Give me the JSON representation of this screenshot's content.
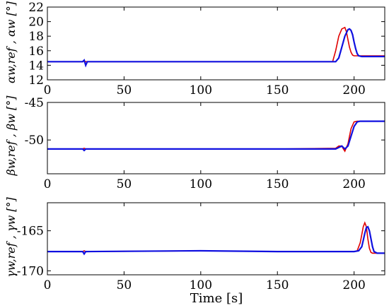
{
  "chart_data": [
    {
      "type": "line",
      "ylabel": "αw,ref , αw  [°]",
      "xlim": [
        0,
        220
      ],
      "ylim": [
        12,
        22
      ],
      "xticks": [
        0,
        50,
        100,
        150,
        200
      ],
      "yticks": [
        12,
        14,
        16,
        18,
        20,
        22
      ],
      "ytick_labels": [
        "12",
        "14",
        "16",
        "18",
        "20",
        "22"
      ],
      "series": [
        {
          "color": "#e00000",
          "role": "reference",
          "x": [
            0,
            23,
            24,
            25,
            26,
            100,
            150,
            186,
            188,
            190,
            192,
            194,
            195,
            196,
            197,
            198,
            199,
            200,
            201,
            202,
            205,
            210,
            220
          ],
          "y": [
            14.5,
            14.5,
            14.6,
            14.5,
            14.5,
            14.5,
            14.5,
            14.5,
            16.0,
            18.0,
            19.0,
            19.2,
            18.6,
            17.5,
            16.5,
            15.8,
            15.4,
            15.3,
            15.3,
            15.3,
            15.3,
            15.3,
            15.3
          ]
        },
        {
          "color": "#1010e0",
          "role": "measured",
          "x": [
            0,
            23,
            24,
            25,
            26,
            100,
            150,
            188,
            190,
            192,
            194,
            196,
            197,
            198,
            199,
            200,
            201,
            202,
            203,
            205,
            210,
            220
          ],
          "y": [
            14.5,
            14.5,
            14.7,
            14.0,
            14.5,
            14.5,
            14.5,
            14.5,
            15.0,
            16.5,
            18.0,
            18.9,
            19.0,
            18.8,
            18.2,
            17.2,
            16.3,
            15.6,
            15.3,
            15.2,
            15.2,
            15.2
          ]
        }
      ]
    },
    {
      "type": "line",
      "ylabel": "βw,ref , βw  [°]",
      "xlim": [
        0,
        220
      ],
      "ylim": [
        -54.5,
        -45
      ],
      "xticks": [
        0,
        50,
        100,
        150,
        200
      ],
      "yticks": [
        -50,
        -45
      ],
      "ytick_labels": [
        "-50",
        "-45"
      ],
      "series": [
        {
          "color": "#e00000",
          "role": "reference",
          "x": [
            0,
            23,
            24,
            25,
            100,
            150,
            188,
            190,
            192,
            193,
            194,
            196,
            198,
            200,
            202,
            205,
            220
          ],
          "y": [
            -51.2,
            -51.2,
            -51.1,
            -51.2,
            -51.2,
            -51.2,
            -51.1,
            -50.8,
            -50.8,
            -51.2,
            -51.5,
            -50.5,
            -48.5,
            -47.6,
            -47.5,
            -47.5,
            -47.5
          ]
        },
        {
          "color": "#1010e0",
          "role": "measured",
          "x": [
            0,
            23,
            24,
            25,
            100,
            150,
            188,
            190,
            192,
            194,
            196,
            198,
            200,
            202,
            204,
            206,
            220
          ],
          "y": [
            -51.2,
            -51.2,
            -51.4,
            -51.2,
            -51.2,
            -51.2,
            -51.2,
            -51.0,
            -50.8,
            -51.2,
            -50.8,
            -49.5,
            -48.2,
            -47.6,
            -47.5,
            -47.5,
            -47.5
          ]
        }
      ]
    },
    {
      "type": "line",
      "ylabel": "γw,ref , γw  [°]",
      "xlim": [
        0,
        220
      ],
      "ylim": [
        -170.5,
        -161.5
      ],
      "xticks": [
        0,
        50,
        100,
        150,
        200
      ],
      "yticks": [
        -170,
        -165
      ],
      "ytick_labels": [
        "-170",
        "-165"
      ],
      "series": [
        {
          "color": "#e00000",
          "role": "reference",
          "x": [
            0,
            23,
            24,
            25,
            100,
            150,
            200,
            202,
            204,
            205,
            206,
            207,
            208,
            209,
            210,
            211,
            212,
            215,
            220
          ],
          "y": [
            -167.6,
            -167.6,
            -167.5,
            -167.6,
            -167.5,
            -167.6,
            -167.6,
            -167.5,
            -166.5,
            -165.5,
            -164.5,
            -164.0,
            -164.5,
            -166.0,
            -167.2,
            -167.7,
            -167.8,
            -167.8,
            -167.8
          ]
        },
        {
          "color": "#1010e0",
          "role": "measured",
          "x": [
            0,
            23,
            24,
            25,
            100,
            150,
            200,
            203,
            205,
            206,
            207,
            208,
            209,
            210,
            211,
            212,
            213,
            215,
            220
          ],
          "y": [
            -167.6,
            -167.6,
            -167.9,
            -167.6,
            -167.5,
            -167.6,
            -167.6,
            -167.5,
            -167.0,
            -166.2,
            -165.3,
            -164.6,
            -164.5,
            -165.0,
            -166.0,
            -167.0,
            -167.6,
            -167.8,
            -167.8
          ]
        }
      ]
    }
  ],
  "xlabel": "Time [s]"
}
